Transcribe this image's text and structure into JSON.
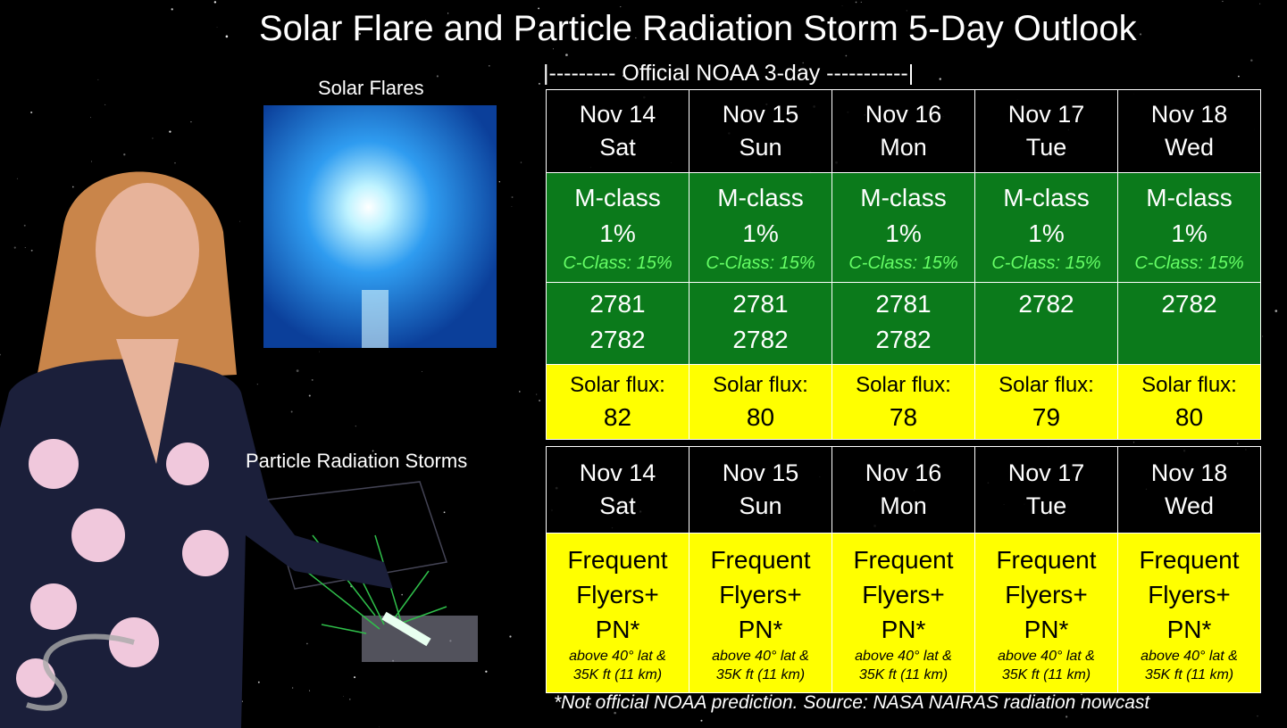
{
  "header": {
    "title": "Solar Flare and Particle Radiation Storm 5-Day Outlook",
    "noaa_bracket": "|--------- Official NOAA 3-day -----------|"
  },
  "panels": {
    "flares_label": "Solar Flares",
    "radiation_label": "Particle Radiation Storms"
  },
  "flare_table": {
    "columns": [
      {
        "date": "Nov 14",
        "day": "Sat",
        "m_class": "M-class",
        "m_prob": "1%",
        "c_class": "C-Class: 15%",
        "regions": [
          "2781",
          "2782"
        ],
        "flux_label": "Solar flux:",
        "flux": 82
      },
      {
        "date": "Nov 15",
        "day": "Sun",
        "m_class": "M-class",
        "m_prob": "1%",
        "c_class": "C-Class: 15%",
        "regions": [
          "2781",
          "2782"
        ],
        "flux_label": "Solar flux:",
        "flux": 80
      },
      {
        "date": "Nov 16",
        "day": "Mon",
        "m_class": "M-class",
        "m_prob": "1%",
        "c_class": "C-Class: 15%",
        "regions": [
          "2781",
          "2782"
        ],
        "flux_label": "Solar flux:",
        "flux": 78
      },
      {
        "date": "Nov 17",
        "day": "Tue",
        "m_class": "M-class",
        "m_prob": "1%",
        "c_class": "C-Class: 15%",
        "regions": [
          "2782"
        ],
        "flux_label": "Solar flux:",
        "flux": 79
      },
      {
        "date": "Nov 18",
        "day": "Wed",
        "m_class": "M-class",
        "m_prob": "1%",
        "c_class": "C-Class: 15%",
        "regions": [
          "2782"
        ],
        "flux_label": "Solar flux:",
        "flux": 80
      }
    ]
  },
  "radiation_table": {
    "columns": [
      {
        "date": "Nov 14",
        "day": "Sat",
        "risk_lines": [
          "Frequent",
          "Flyers+",
          "PN*"
        ],
        "note_lines": [
          "above 40° lat &",
          "35K ft (11 km)"
        ]
      },
      {
        "date": "Nov 15",
        "day": "Sun",
        "risk_lines": [
          "Frequent",
          "Flyers+",
          "PN*"
        ],
        "note_lines": [
          "above 40° lat &",
          "35K ft (11 km)"
        ]
      },
      {
        "date": "Nov 16",
        "day": "Mon",
        "risk_lines": [
          "Frequent",
          "Flyers+",
          "PN*"
        ],
        "note_lines": [
          "above 40° lat &",
          "35K ft (11 km)"
        ]
      },
      {
        "date": "Nov 17",
        "day": "Tue",
        "risk_lines": [
          "Frequent",
          "Flyers+",
          "PN*"
        ],
        "note_lines": [
          "above 40° lat &",
          "35K ft (11 km)"
        ]
      },
      {
        "date": "Nov 18",
        "day": "Wed",
        "risk_lines": [
          "Frequent",
          "Flyers+",
          "PN*"
        ],
        "note_lines": [
          "above 40° lat &",
          "35K ft (11 km)"
        ]
      }
    ]
  },
  "footnote": "*Not official NOAA prediction. Source: NASA NAIRAS radiation nowcast"
}
